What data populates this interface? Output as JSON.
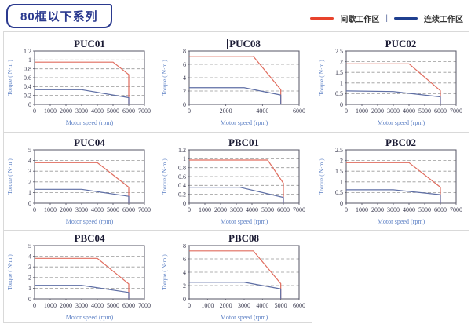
{
  "header": {
    "series_badge": "80框以下系列",
    "legend": {
      "items": [
        {
          "label": "间歇工作区",
          "color": "#e8432c"
        },
        {
          "label": "连续工作区",
          "color": "#1f3f8f"
        }
      ],
      "separator": "|"
    }
  },
  "style": {
    "red_line": "#e06c5e",
    "blue_line": "#5f6fa5",
    "grid_color": "#999999",
    "axis_color": "#555566",
    "tick_color": "#3a3a4f",
    "label_color": "#5b7fc4",
    "title_color": "#1a1a33",
    "cell_border": "#d9d9d9",
    "badge_color": "#2b3a8f"
  },
  "chart_data": [
    {
      "type": "line",
      "title": "PUC01",
      "xlabel": "Motor speed (rpm)",
      "ylabel": "Torque ( N·m )",
      "xlim": [
        0,
        7000
      ],
      "xticks": [
        0,
        1000,
        2000,
        3000,
        4000,
        5000,
        6000,
        7000
      ],
      "ylim": [
        0,
        1.2
      ],
      "yticks": [
        0,
        0.2,
        0.4,
        0.6,
        0.8,
        1,
        1.2
      ],
      "grid": "horizontal-dashed",
      "series": [
        {
          "name": "间歇工作区",
          "color": "#e06c5e",
          "points": [
            [
              0,
              0.95
            ],
            [
              5000,
              0.95
            ],
            [
              6000,
              0.67
            ],
            [
              6000,
              0
            ]
          ]
        },
        {
          "name": "连续工作区",
          "color": "#5f6fa5",
          "points": [
            [
              0,
              0.33
            ],
            [
              3000,
              0.33
            ],
            [
              6000,
              0.15
            ],
            [
              6000,
              0
            ]
          ]
        }
      ]
    },
    {
      "type": "line",
      "title": "PUC08",
      "cursor_before_title": true,
      "xlabel": "Motor speed (rpm)",
      "ylabel": "Torque ( N·m )",
      "xlim": [
        0,
        6000
      ],
      "xticks": [
        0,
        2000,
        4000,
        6000
      ],
      "ylim": [
        0,
        8
      ],
      "yticks": [
        0,
        2,
        4,
        6,
        8
      ],
      "grid": "horizontal-dashed",
      "series": [
        {
          "name": "间歇工作区",
          "color": "#e06c5e",
          "points": [
            [
              0,
              7.2
            ],
            [
              3500,
              7.2
            ],
            [
              5000,
              2.2
            ],
            [
              5000,
              0
            ]
          ]
        },
        {
          "name": "连续工作区",
          "color": "#5f6fa5",
          "points": [
            [
              0,
              2.5
            ],
            [
              3000,
              2.5
            ],
            [
              5000,
              1.4
            ],
            [
              5000,
              0
            ]
          ]
        }
      ]
    },
    {
      "type": "line",
      "title": "PUC02",
      "xlabel": "Motor speed (rpm)",
      "ylabel": "Torque ( N·m )",
      "xlim": [
        0,
        7000
      ],
      "xticks": [
        0,
        1000,
        2000,
        3000,
        4000,
        5000,
        6000,
        7000
      ],
      "ylim": [
        0,
        2.5
      ],
      "yticks": [
        0,
        0.5,
        1,
        1.5,
        2,
        2.5
      ],
      "grid": "horizontal-dashed",
      "series": [
        {
          "name": "间歇工作区",
          "color": "#e06c5e",
          "points": [
            [
              0,
              1.9
            ],
            [
              4000,
              1.9
            ],
            [
              6000,
              0.64
            ],
            [
              6000,
              0
            ]
          ]
        },
        {
          "name": "连续工作区",
          "color": "#5f6fa5",
          "points": [
            [
              0,
              0.63
            ],
            [
              3000,
              0.6
            ],
            [
              6000,
              0.35
            ],
            [
              6000,
              0
            ]
          ]
        }
      ]
    },
    {
      "type": "line",
      "title": "PUC04",
      "xlabel": "Motor speed (rpm)",
      "ylabel": "Torque ( N·m )",
      "xlim": [
        0,
        7000
      ],
      "xticks": [
        0,
        1000,
        2000,
        3000,
        4000,
        5000,
        6000,
        7000
      ],
      "ylim": [
        0,
        5
      ],
      "yticks": [
        0,
        1,
        2,
        3,
        4,
        5
      ],
      "grid": "horizontal-dashed",
      "series": [
        {
          "name": "间歇工作区",
          "color": "#e06c5e",
          "points": [
            [
              0,
              3.8
            ],
            [
              4000,
              3.8
            ],
            [
              6000,
              1.5
            ],
            [
              6000,
              0
            ]
          ]
        },
        {
          "name": "连续工作区",
          "color": "#5f6fa5",
          "points": [
            [
              0,
              1.3
            ],
            [
              3000,
              1.3
            ],
            [
              6000,
              0.65
            ],
            [
              6000,
              0
            ]
          ]
        }
      ]
    },
    {
      "type": "line",
      "title": "PBC01",
      "xlabel": "Motor speed (rpm)",
      "ylabel": "Torque ( N·m )",
      "xlim": [
        0,
        7000
      ],
      "xticks": [
        0,
        1000,
        2000,
        3000,
        4000,
        5000,
        6000,
        7000
      ],
      "ylim": [
        0,
        1.2
      ],
      "yticks": [
        0,
        0.2,
        0.4,
        0.6,
        0.8,
        1,
        1.2
      ],
      "grid": "horizontal-dashed",
      "series": [
        {
          "name": "间歇工作区",
          "color": "#e06c5e",
          "points": [
            [
              0,
              0.97
            ],
            [
              5000,
              0.97
            ],
            [
              6000,
              0.45
            ],
            [
              6000,
              0
            ]
          ]
        },
        {
          "name": "连续工作区",
          "color": "#5f6fa5",
          "points": [
            [
              0,
              0.36
            ],
            [
              3200,
              0.36
            ],
            [
              6000,
              0.13
            ],
            [
              6000,
              0
            ]
          ]
        }
      ]
    },
    {
      "type": "line",
      "title": "PBC02",
      "xlabel": "Motor speed (rpm)",
      "ylabel": "Torque ( N·m )",
      "xlim": [
        0,
        7000
      ],
      "xticks": [
        0,
        1000,
        2000,
        3000,
        4000,
        5000,
        6000,
        7000
      ],
      "ylim": [
        0,
        2.5
      ],
      "yticks": [
        0,
        0.5,
        1,
        1.5,
        2,
        2.5
      ],
      "grid": "horizontal-dashed",
      "series": [
        {
          "name": "间歇工作区",
          "color": "#e06c5e",
          "points": [
            [
              0,
              1.9
            ],
            [
              4000,
              1.9
            ],
            [
              6000,
              0.75
            ],
            [
              6000,
              0
            ]
          ]
        },
        {
          "name": "连续工作区",
          "color": "#5f6fa5",
          "points": [
            [
              0,
              0.63
            ],
            [
              3000,
              0.63
            ],
            [
              6000,
              0.4
            ],
            [
              6000,
              0
            ]
          ]
        }
      ]
    },
    {
      "type": "line",
      "title": "PBC04",
      "xlabel": "Motor speed (rpm)",
      "ylabel": "Torque ( N·m )",
      "xlim": [
        0,
        7000
      ],
      "xticks": [
        0,
        1000,
        2000,
        3000,
        4000,
        5000,
        6000,
        7000
      ],
      "ylim": [
        0,
        5
      ],
      "yticks": [
        0,
        1,
        2,
        3,
        4,
        5
      ],
      "grid": "horizontal-dashed",
      "series": [
        {
          "name": "间歇工作区",
          "color": "#e06c5e",
          "points": [
            [
              0,
              3.8
            ],
            [
              4000,
              3.8
            ],
            [
              6000,
              1.4
            ],
            [
              6000,
              0
            ]
          ]
        },
        {
          "name": "连续工作区",
          "color": "#5f6fa5",
          "points": [
            [
              0,
              1.27
            ],
            [
              3000,
              1.27
            ],
            [
              6000,
              0.6
            ],
            [
              6000,
              0
            ]
          ]
        }
      ]
    },
    {
      "type": "line",
      "title": "PBC08",
      "xlabel": "Motor speed (rpm)",
      "ylabel": "Torque ( N·m )",
      "xlim": [
        0,
        6000
      ],
      "xticks": [
        0,
        1000,
        2000,
        3000,
        4000,
        5000,
        6000
      ],
      "ylim": [
        0,
        8
      ],
      "yticks": [
        0,
        2,
        4,
        6,
        8
      ],
      "grid": "horizontal-dashed",
      "series": [
        {
          "name": "间歇工作区",
          "color": "#e06c5e",
          "points": [
            [
              0,
              7.2
            ],
            [
              3500,
              7.2
            ],
            [
              5000,
              2.3
            ],
            [
              5000,
              0
            ]
          ]
        },
        {
          "name": "连续工作区",
          "color": "#5f6fa5",
          "points": [
            [
              0,
              2.5
            ],
            [
              3000,
              2.5
            ],
            [
              5000,
              1.5
            ],
            [
              5000,
              0
            ]
          ]
        }
      ]
    }
  ]
}
